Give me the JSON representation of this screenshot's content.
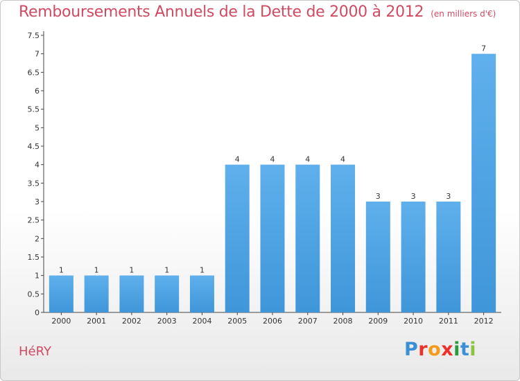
{
  "chart_data": {
    "type": "bar",
    "title": "Remboursements Annuels de la Dette de 2000 à 2012",
    "subtitle": "(en milliers d'€)",
    "categories": [
      "2000",
      "2001",
      "2002",
      "2003",
      "2004",
      "2005",
      "2006",
      "2007",
      "2008",
      "2009",
      "2010",
      "2011",
      "2012"
    ],
    "values": [
      1,
      1,
      1,
      1,
      1,
      4,
      4,
      4,
      4,
      3,
      3,
      3,
      7
    ],
    "ylim": [
      0,
      7.5
    ],
    "yticks": [
      "0",
      "0.5",
      "1",
      "1.5",
      "2",
      "2.5",
      "3",
      "3.5",
      "4",
      "4.5",
      "5",
      "5.5",
      "6",
      "6.5",
      "7",
      "7.5"
    ],
    "grid": false,
    "bar_color": "#3f96d9"
  },
  "footer": {
    "place": "HéRY",
    "logo_letters": [
      "P",
      "r",
      "o",
      "x",
      "i",
      "t",
      "i"
    ],
    "logo_colors": [
      "#3a8fd6",
      "#e8322b",
      "#f39c1a",
      "#e8322b",
      "#2a9a3c",
      "#3a8fd6",
      "#8bc53f"
    ]
  }
}
